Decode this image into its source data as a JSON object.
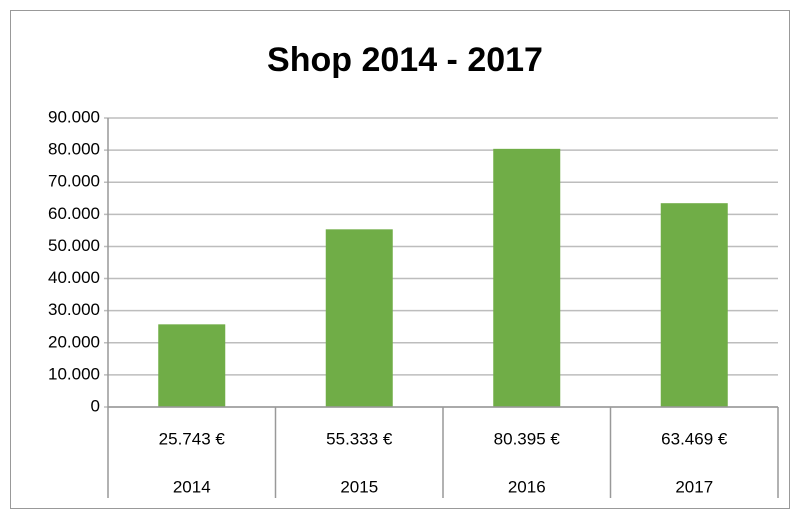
{
  "chart_data": {
    "type": "bar",
    "title": "Shop 2014 - 2017",
    "categories": [
      "2014",
      "2015",
      "2016",
      "2017"
    ],
    "values": [
      25743,
      55333,
      80395,
      63469
    ],
    "value_labels": [
      "25.743 €",
      "55.333 €",
      "80.395 €",
      "63.469 €"
    ],
    "color": "#70ad47",
    "ylim": [
      0,
      90000
    ],
    "yticks": [
      0,
      {
        "value": 10000,
        "label": "10.000"
      },
      {
        "value": 20000,
        "label": "20.000"
      },
      {
        "value": 30000,
        "label": "30.000"
      },
      {
        "value": 40000,
        "label": "40.000"
      },
      {
        "value": 50000,
        "label": "50.000"
      },
      {
        "value": 60000,
        "label": "60.000"
      },
      {
        "value": 70000,
        "label": "70.000"
      },
      {
        "value": 80000,
        "label": "80.000"
      },
      {
        "value": 90000,
        "label": "90.000"
      }
    ],
    "grid": true
  }
}
